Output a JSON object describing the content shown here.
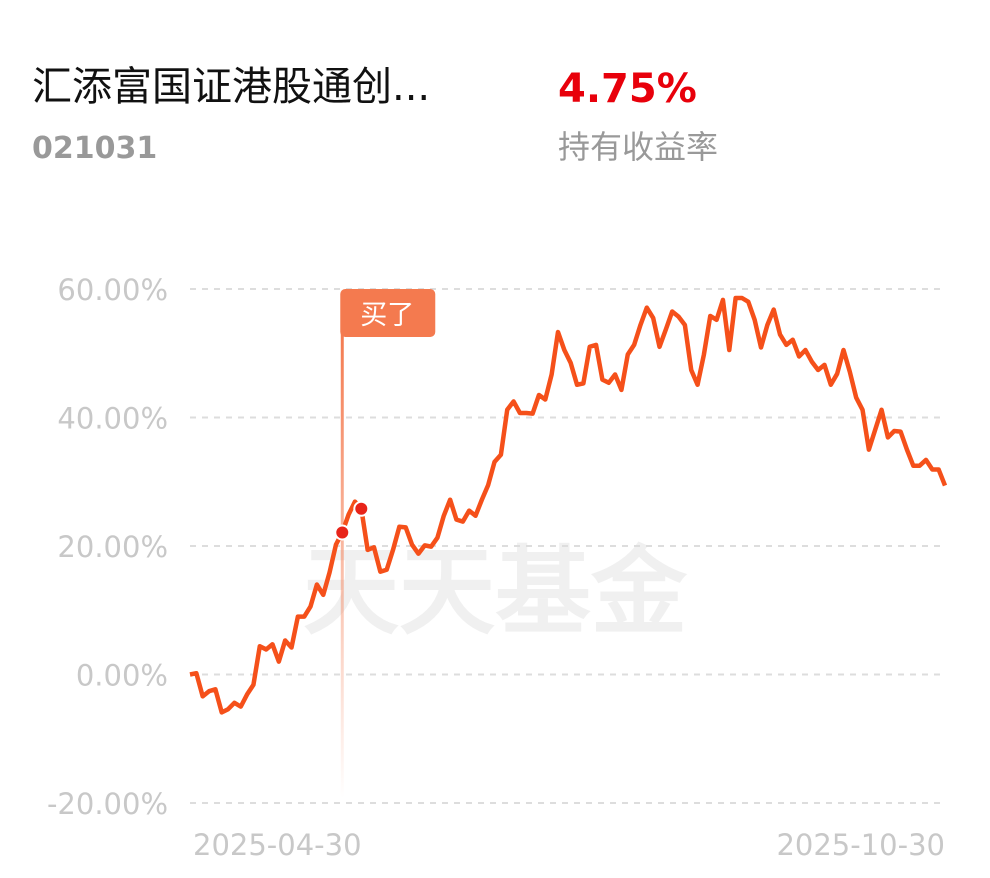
{
  "header": {
    "title": "汇添富国证港股通创...",
    "code": "021031",
    "return_value": "4.75%",
    "return_label": "持有收益率"
  },
  "chart_data": {
    "type": "line",
    "annotation": "买了",
    "watermark": "天天基金",
    "categories": [
      "2025-04-30",
      null,
      null,
      null,
      null,
      null,
      null,
      null,
      null,
      null,
      null,
      null,
      null,
      null,
      null,
      null,
      null,
      null,
      null,
      null,
      null,
      null,
      null,
      null,
      null,
      null,
      null,
      null,
      null,
      null,
      null,
      null,
      null,
      null,
      null,
      null,
      null,
      null,
      null,
      null,
      null,
      null,
      null,
      null,
      null,
      null,
      null,
      null,
      null,
      null,
      null,
      null,
      null,
      null,
      null,
      null,
      null,
      null,
      null,
      null,
      null,
      null,
      null,
      null,
      null,
      null,
      null,
      null,
      null,
      null,
      null,
      null,
      null,
      null,
      null,
      null,
      null,
      null,
      null,
      null,
      null,
      null,
      null,
      null,
      null,
      null,
      null,
      null,
      null,
      null,
      null,
      null,
      null,
      null,
      null,
      null,
      null,
      null,
      null,
      null,
      null,
      null,
      null,
      null,
      null,
      null,
      null,
      null,
      null,
      null,
      null,
      null,
      null,
      null,
      null,
      null,
      null,
      null,
      null,
      "2025-10-30"
    ],
    "series": [
      {
        "color": "#f5501a",
        "values": [
          0,
          0.2,
          -3.4,
          -2.6,
          -2.3,
          -5.9,
          -5.4,
          -4.4,
          -5.0,
          -3.1,
          -1.6,
          4.4,
          3.9,
          4.7,
          2.0,
          5.3,
          4.2,
          9.0,
          9.0,
          10.6,
          14.0,
          12.4,
          15.9,
          20.2,
          22.1,
          24.9,
          26.9,
          25.8,
          19.4,
          19.8,
          16.0,
          16.3,
          19.4,
          23.0,
          22.9,
          20.2,
          18.8,
          20.1,
          19.9,
          21.3,
          24.7,
          27.2,
          24.1,
          23.8,
          25.5,
          24.7,
          27.2,
          29.5,
          33.1,
          34.2,
          41.2,
          42.5,
          40.7,
          40.7,
          40.6,
          43.5,
          42.8,
          46.7,
          53.3,
          50.5,
          48.5,
          45.1,
          45.3,
          51.0,
          51.3,
          45.9,
          45.4,
          46.7,
          44.3,
          49.8,
          51.3,
          54.4,
          57.1,
          55.5,
          51.0,
          53.7,
          56.5,
          55.7,
          54.4,
          47.4,
          45.1,
          49.8,
          55.8,
          55.2,
          58.3,
          50.5,
          58.6,
          58.6,
          58.0,
          55.2,
          50.9,
          54.4,
          56.8,
          52.9,
          51.3,
          52.1,
          49.5,
          50.5,
          48.7,
          47.4,
          48.2,
          45.1,
          46.8,
          50.5,
          47.1,
          43.1,
          41.2,
          35.0,
          38.1,
          41.2,
          36.9,
          37.9,
          37.8,
          35.0,
          32.5,
          32.5,
          33.4,
          31.9,
          31.9,
          29.4
        ]
      }
    ],
    "ylim": [
      -20,
      60
    ],
    "yticks": [
      {
        "value": -20,
        "label": "-20.00%"
      },
      {
        "value": 0,
        "label": "0.00%"
      },
      {
        "value": 20,
        "label": "20.00%"
      },
      {
        "value": 40,
        "label": "40.00%"
      },
      {
        "value": 60,
        "label": "60.00%"
      }
    ],
    "grid": true
  }
}
